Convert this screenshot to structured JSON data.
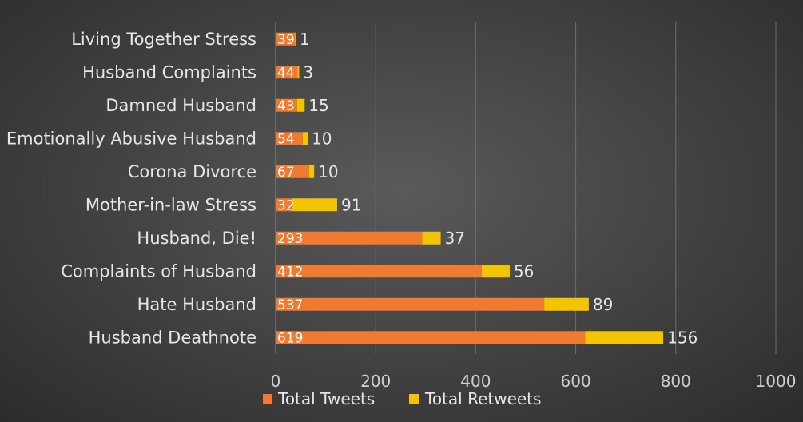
{
  "chart_data": {
    "type": "bar",
    "orientation": "horizontal",
    "stacked": true,
    "categories": [
      "Living Together Stress",
      "Husband Complaints",
      "Damned Husband",
      "Emotionally Abusive Husband",
      "Corona Divorce",
      "Mother-in-law Stress",
      "Husband, Die!",
      "Complaints of Husband",
      "Hate Husband",
      "Husband Deathnote"
    ],
    "series": [
      {
        "name": "Total Tweets",
        "color": "#f07a30",
        "values": [
          39,
          44,
          43,
          54,
          67,
          32,
          293,
          412,
          537,
          619
        ],
        "labels": [
          "39",
          "44",
          "43",
          "54",
          "67",
          "32",
          "293",
          "412",
          "537",
          "619"
        ]
      },
      {
        "name": "Total Retweets",
        "color": "#f5c400",
        "values": [
          1,
          3,
          15,
          10,
          10,
          91,
          37,
          56,
          89,
          156
        ],
        "labels": [
          "1",
          "3",
          "15",
          "10",
          "10",
          "91",
          "37",
          "56",
          "89",
          "156"
        ]
      }
    ],
    "xlim": [
      0,
      1000
    ],
    "xticks": [
      0,
      200,
      400,
      600,
      800,
      1000
    ],
    "xtick_labels": [
      "0",
      "200",
      "400",
      "600",
      "800",
      "1000"
    ],
    "grid": true,
    "legend_position": "bottom"
  }
}
